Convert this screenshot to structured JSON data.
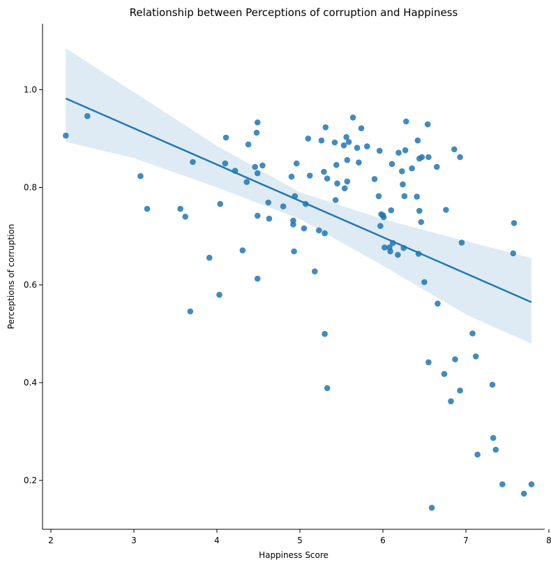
{
  "chart_data": {
    "type": "scatter",
    "title": "Relationship between Perceptions of corruption and Happiness",
    "xlabel": "Happiness Score",
    "ylabel": "Perceptions of corruption",
    "xlim": [
      1.9,
      7.95
    ],
    "ylim": [
      0.1,
      1.135
    ],
    "xticks": [
      2,
      3,
      4,
      5,
      6,
      7,
      8
    ],
    "yticks": [
      0.2,
      0.4,
      0.6,
      0.8,
      1.0
    ],
    "xtick_labels": [
      "2",
      "3",
      "4",
      "5",
      "6",
      "7",
      "8"
    ],
    "ytick_labels": [
      "0.2",
      "0.4",
      "0.6",
      "0.8",
      "1.0"
    ],
    "grid": false,
    "colors": {
      "points": "#1f77b4",
      "line": "#1f77b4",
      "band": "#1f77b4"
    },
    "regression": {
      "x": [
        2.18,
        7.79
      ],
      "y": [
        0.982,
        0.565
      ]
    },
    "confidence_band": {
      "x": [
        2.18,
        3.0,
        4.0,
        5.0,
        6.0,
        7.0,
        7.79
      ],
      "upper": [
        1.085,
        0.995,
        0.885,
        0.79,
        0.735,
        0.69,
        0.655
      ],
      "lower": [
        0.893,
        0.86,
        0.8,
        0.735,
        0.64,
        0.54,
        0.48
      ]
    },
    "points": [
      [
        2.18,
        0.906
      ],
      [
        2.44,
        0.946
      ],
      [
        3.08,
        0.823
      ],
      [
        3.16,
        0.756
      ],
      [
        3.56,
        0.756
      ],
      [
        3.62,
        0.74
      ],
      [
        3.68,
        0.546
      ],
      [
        3.71,
        0.852
      ],
      [
        3.91,
        0.656
      ],
      [
        4.03,
        0.58
      ],
      [
        4.04,
        0.766
      ],
      [
        4.1,
        0.849
      ],
      [
        4.11,
        0.902
      ],
      [
        4.22,
        0.834
      ],
      [
        4.31,
        0.671
      ],
      [
        4.36,
        0.811
      ],
      [
        4.38,
        0.888
      ],
      [
        4.46,
        0.842
      ],
      [
        4.48,
        0.912
      ],
      [
        4.49,
        0.933
      ],
      [
        4.49,
        0.829
      ],
      [
        4.49,
        0.742
      ],
      [
        4.49,
        0.613
      ],
      [
        4.55,
        0.845
      ],
      [
        4.62,
        0.769
      ],
      [
        4.63,
        0.736
      ],
      [
        4.8,
        0.761
      ],
      [
        4.9,
        0.822
      ],
      [
        4.92,
        0.724
      ],
      [
        4.92,
        0.732
      ],
      [
        4.93,
        0.669
      ],
      [
        4.94,
        0.782
      ],
      [
        4.96,
        0.849
      ],
      [
        5.05,
        0.716
      ],
      [
        5.07,
        0.766
      ],
      [
        5.1,
        0.9
      ],
      [
        5.12,
        0.824
      ],
      [
        5.18,
        0.628
      ],
      [
        5.23,
        0.712
      ],
      [
        5.26,
        0.896
      ],
      [
        5.29,
        0.832
      ],
      [
        5.3,
        0.5
      ],
      [
        5.3,
        0.706
      ],
      [
        5.31,
        0.923
      ],
      [
        5.33,
        0.818
      ],
      [
        5.33,
        0.389
      ],
      [
        5.42,
        0.892
      ],
      [
        5.43,
        0.774
      ],
      [
        5.44,
        0.846
      ],
      [
        5.45,
        0.808
      ],
      [
        5.53,
        0.886
      ],
      [
        5.54,
        0.798
      ],
      [
        5.56,
        0.903
      ],
      [
        5.57,
        0.856
      ],
      [
        5.57,
        0.812
      ],
      [
        5.59,
        0.893
      ],
      [
        5.64,
        0.943
      ],
      [
        5.69,
        0.881
      ],
      [
        5.71,
        0.851
      ],
      [
        5.74,
        0.921
      ],
      [
        5.81,
        0.884
      ],
      [
        5.9,
        0.817
      ],
      [
        5.95,
        0.782
      ],
      [
        5.96,
        0.875
      ],
      [
        5.97,
        0.721
      ],
      [
        5.98,
        0.745
      ],
      [
        6.0,
        0.743
      ],
      [
        6.01,
        0.739
      ],
      [
        6.02,
        0.677
      ],
      [
        6.08,
        0.677
      ],
      [
        6.09,
        0.669
      ],
      [
        6.1,
        0.753
      ],
      [
        6.11,
        0.848
      ],
      [
        6.12,
        0.686
      ],
      [
        6.18,
        0.662
      ],
      [
        6.19,
        0.871
      ],
      [
        6.23,
        0.833
      ],
      [
        6.24,
        0.806
      ],
      [
        6.25,
        0.676
      ],
      [
        6.26,
        0.782
      ],
      [
        6.27,
        0.876
      ],
      [
        6.28,
        0.935
      ],
      [
        6.35,
        0.839
      ],
      [
        6.41,
        0.781
      ],
      [
        6.42,
        0.896
      ],
      [
        6.43,
        0.664
      ],
      [
        6.44,
        0.859
      ],
      [
        6.44,
        0.752
      ],
      [
        6.46,
        0.729
      ],
      [
        6.47,
        0.862
      ],
      [
        6.5,
        0.606
      ],
      [
        6.54,
        0.929
      ],
      [
        6.55,
        0.862
      ],
      [
        6.55,
        0.442
      ],
      [
        6.59,
        0.144
      ],
      [
        6.65,
        0.842
      ],
      [
        6.66,
        0.562
      ],
      [
        6.74,
        0.418
      ],
      [
        6.76,
        0.754
      ],
      [
        6.82,
        0.362
      ],
      [
        6.86,
        0.878
      ],
      [
        6.87,
        0.448
      ],
      [
        6.93,
        0.862
      ],
      [
        6.93,
        0.384
      ],
      [
        6.95,
        0.687
      ],
      [
        7.08,
        0.501
      ],
      [
        7.12,
        0.454
      ],
      [
        7.14,
        0.253
      ],
      [
        7.32,
        0.396
      ],
      [
        7.33,
        0.287
      ],
      [
        7.36,
        0.263
      ],
      [
        7.44,
        0.192
      ],
      [
        7.57,
        0.665
      ],
      [
        7.58,
        0.727
      ],
      [
        7.7,
        0.173
      ],
      [
        7.79,
        0.192
      ]
    ]
  }
}
